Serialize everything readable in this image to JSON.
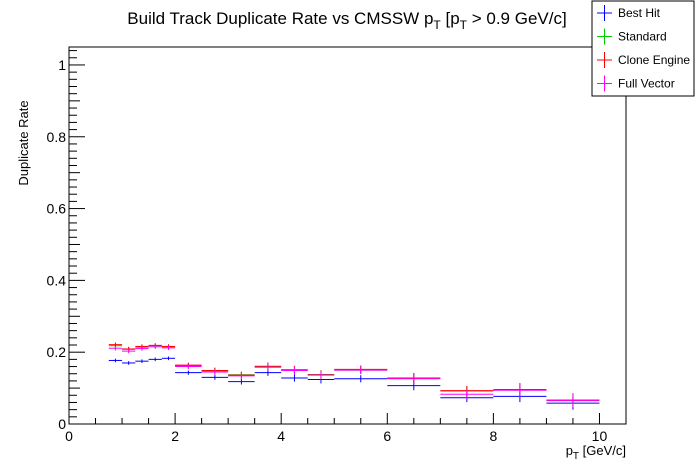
{
  "chart_data": {
    "type": "scatter",
    "title": "Build Track Duplicate Rate vs CMSSW p",
    "title_sub1": "T",
    "title_mid": " [p",
    "title_sub2": "T",
    "title_tail": " > 0.9 GeV/c]",
    "xlabel": "p",
    "xlabel_sub": "T",
    "xlabel_tail": " [GeV/c]",
    "ylabel": "Duplicate Rate",
    "xlim": [
      0,
      10.5
    ],
    "ylim": [
      0,
      1.05
    ],
    "x_ticks": [
      0,
      2,
      4,
      6,
      8,
      10
    ],
    "x_tick_labels": [
      "0",
      "2",
      "4",
      "6",
      "8",
      "10"
    ],
    "y_ticks": [
      0,
      0.2,
      0.4,
      0.6,
      0.8,
      1
    ],
    "y_tick_labels": [
      "0",
      "0.2",
      "0.4",
      "0.6",
      "0.8",
      "1"
    ],
    "legend_position": "top-right",
    "bins": [
      [
        0.75,
        1.0
      ],
      [
        1.0,
        1.25
      ],
      [
        1.25,
        1.5
      ],
      [
        1.5,
        1.75
      ],
      [
        1.75,
        2.0
      ],
      [
        2.0,
        2.5
      ],
      [
        2.5,
        3.0
      ],
      [
        3.0,
        3.5
      ],
      [
        3.5,
        4.0
      ],
      [
        4.0,
        4.5
      ],
      [
        4.5,
        5.0
      ],
      [
        5.0,
        6.0
      ],
      [
        6.0,
        7.0
      ],
      [
        7.0,
        8.0
      ],
      [
        8.0,
        9.0
      ],
      [
        9.0,
        10.0
      ]
    ],
    "series": [
      {
        "name": "Best Hit",
        "color": "#0000ff",
        "values": [
          0.177,
          0.17,
          0.175,
          0.18,
          0.183,
          0.143,
          0.13,
          0.118,
          0.143,
          0.128,
          0.124,
          0.126,
          0.107,
          0.073,
          0.077,
          0.058
        ],
        "errors": [
          0.005,
          0.005,
          0.005,
          0.005,
          0.005,
          0.006,
          0.007,
          0.008,
          0.009,
          0.01,
          0.011,
          0.01,
          0.013,
          0.012,
          0.016,
          0.018
        ]
      },
      {
        "name": "Standard",
        "color": "#00cc00",
        "values": [
          0.218,
          0.208,
          0.214,
          0.218,
          0.215,
          0.163,
          0.148,
          0.137,
          0.16,
          0.15,
          0.138,
          0.15,
          0.127,
          0.092,
          0.095,
          0.067
        ],
        "errors": [
          0.006,
          0.006,
          0.006,
          0.006,
          0.006,
          0.007,
          0.008,
          0.009,
          0.01,
          0.011,
          0.012,
          0.011,
          0.014,
          0.013,
          0.018,
          0.019
        ]
      },
      {
        "name": "Clone Engine",
        "color": "#ff0000",
        "values": [
          0.221,
          0.209,
          0.216,
          0.219,
          0.216,
          0.164,
          0.149,
          0.136,
          0.161,
          0.151,
          0.137,
          0.152,
          0.128,
          0.093,
          0.096,
          0.066
        ],
        "errors": [
          0.006,
          0.006,
          0.006,
          0.006,
          0.006,
          0.007,
          0.008,
          0.009,
          0.01,
          0.011,
          0.012,
          0.011,
          0.014,
          0.013,
          0.018,
          0.019
        ]
      },
      {
        "name": "Full Vector",
        "color": "#ff00ff",
        "values": [
          0.211,
          0.203,
          0.21,
          0.215,
          0.212,
          0.16,
          0.145,
          0.134,
          0.158,
          0.149,
          0.136,
          0.15,
          0.126,
          0.083,
          0.094,
          0.065
        ],
        "errors": [
          0.006,
          0.006,
          0.006,
          0.006,
          0.006,
          0.007,
          0.008,
          0.009,
          0.01,
          0.011,
          0.012,
          0.011,
          0.014,
          0.013,
          0.018,
          0.019
        ]
      }
    ]
  }
}
